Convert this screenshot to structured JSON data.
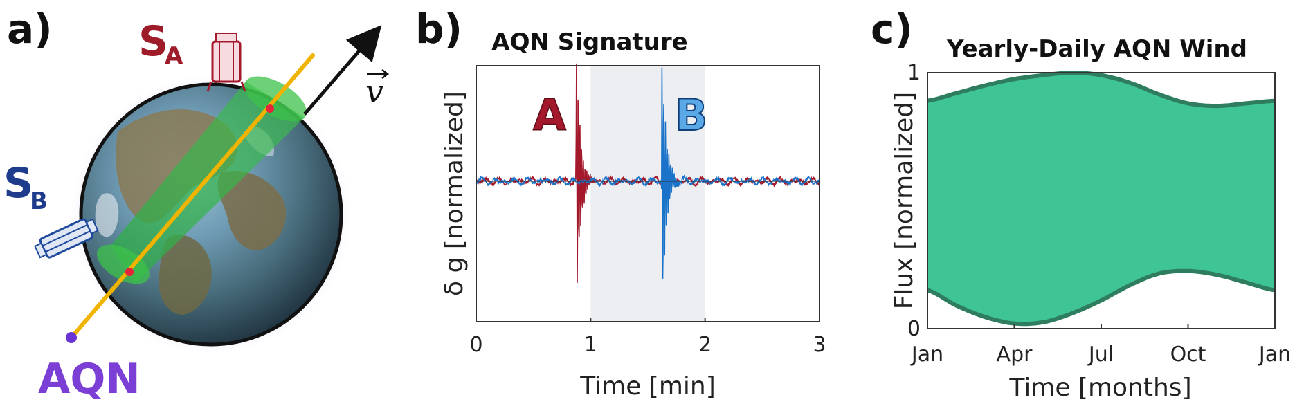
{
  "panel_a": {
    "label": "a)",
    "station_a_letter": "S",
    "station_a_sub": "A",
    "station_b_letter": "S",
    "station_b_sub": "B",
    "particle_label": "AQN",
    "velocity_label": "v",
    "colors": {
      "station_a": "#9e1b2a",
      "station_b": "#1f3c8c",
      "particle": "#7b3fd6",
      "track": "#f0b400",
      "cone": "#3cc24a"
    }
  },
  "panel_b": {
    "label": "b)",
    "chart_data": {
      "type": "line",
      "title": "AQN Signature",
      "xlabel": "Time [min]",
      "ylabel": "δ g [normalized]",
      "xlim": [
        0,
        3
      ],
      "xticks": [
        "0",
        "1",
        "2",
        "3"
      ],
      "shaded_interval": [
        1,
        2
      ],
      "series": [
        {
          "name": "A",
          "color": "#a3192b",
          "burst_time": 0.88
        },
        {
          "name": "B",
          "color": "#1a73c9",
          "burst_time": 1.63
        }
      ]
    }
  },
  "panel_c": {
    "label": "c)",
    "chart_data": {
      "type": "area",
      "title": "Yearly-Daily AQN Wind",
      "xlabel": "Time [months]",
      "ylabel": "Flux [normalized]",
      "ylim": [
        0,
        1
      ],
      "yticks": [
        "0",
        "1"
      ],
      "xticks": [
        "Jan",
        "Apr",
        "Jul",
        "Oct",
        "Jan"
      ],
      "x": [
        0,
        1,
        2,
        3,
        4,
        5,
        6,
        7,
        8,
        9,
        10,
        11,
        12
      ],
      "upper": [
        0.89,
        0.92,
        0.95,
        0.975,
        0.99,
        1.0,
        0.99,
        0.96,
        0.915,
        0.88,
        0.87,
        0.88,
        0.89
      ],
      "lower": [
        0.15,
        0.09,
        0.045,
        0.02,
        0.025,
        0.06,
        0.11,
        0.17,
        0.215,
        0.225,
        0.21,
        0.18,
        0.15
      ],
      "fill_color": "#3fc495",
      "edge_color": "#2e7d5f"
    }
  }
}
